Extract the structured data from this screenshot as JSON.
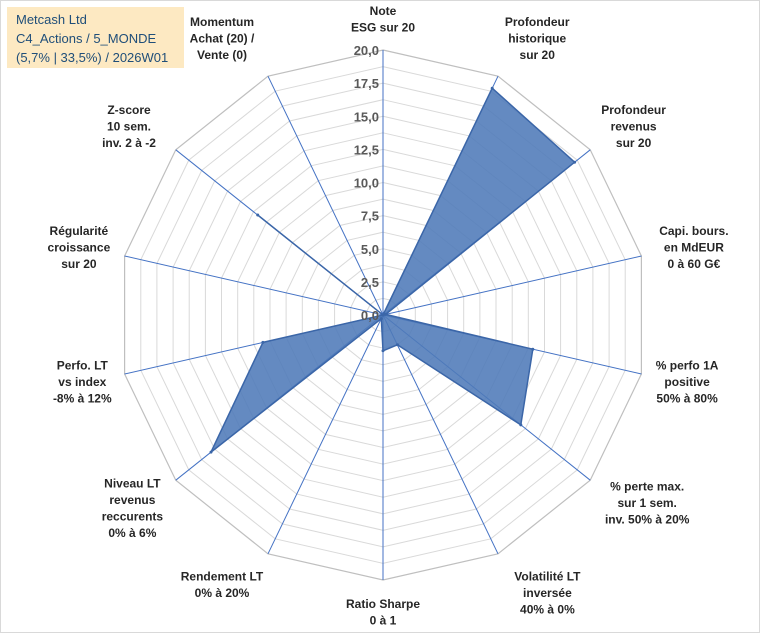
{
  "header": {
    "line1": "Metcash Ltd",
    "line2": "C4_Actions / 5_MONDE",
    "line3": "(5,7% | 33,5%) / 2026W01"
  },
  "colors": {
    "fill": "#4f7ab8",
    "stroke": "#3b66a8",
    "axis": "#4472c4",
    "grid": "#d9d9d9",
    "title_bg": "#fde9c2"
  },
  "chart_data": {
    "type": "radar",
    "title": "Metcash Ltd",
    "r_range": [
      0,
      20
    ],
    "r_ticks": [
      "0,0",
      "2,5",
      "5,0",
      "7,5",
      "10,0",
      "12,5",
      "15,0",
      "17,5",
      "20,0"
    ],
    "grid": true,
    "categories": [
      [
        "Note",
        "ESG sur 20"
      ],
      [
        "Profondeur",
        "historique",
        "sur 20"
      ],
      [
        "Profondeur",
        "revenus",
        "sur 20"
      ],
      [
        "Capi. bours.",
        "en MdEUR",
        "0 à 60 G€"
      ],
      [
        "% perfo 1A",
        "positive",
        "50% à 80%"
      ],
      [
        "% perte max.",
        "sur 1 sem.",
        "inv. 50% à 20%"
      ],
      [
        "Volatilité LT",
        "inversée",
        "40% à 0%"
      ],
      [
        "Ratio Sharpe",
        "0 à 1"
      ],
      [
        "Rendement LT",
        "0% à 20%"
      ],
      [
        "Niveau LT",
        "revenus",
        "reccurents",
        "0% à 6%"
      ],
      [
        "Perfo. LT",
        "vs index",
        "-8% à 12%"
      ],
      [
        "Régularité",
        "croissance",
        "sur 20"
      ],
      [
        "Z-score",
        "10 sem.",
        "inv. 2 à -2"
      ],
      [
        "Momentum",
        "Achat (20) /",
        "Vente (0)"
      ]
    ],
    "series": [
      {
        "name": "Metcash Ltd",
        "values": [
          0,
          19,
          18.5,
          0.2,
          11.6,
          13.3,
          2.5,
          2.7,
          0.3,
          16.6,
          9.3,
          0,
          12.1,
          0
        ]
      }
    ]
  }
}
